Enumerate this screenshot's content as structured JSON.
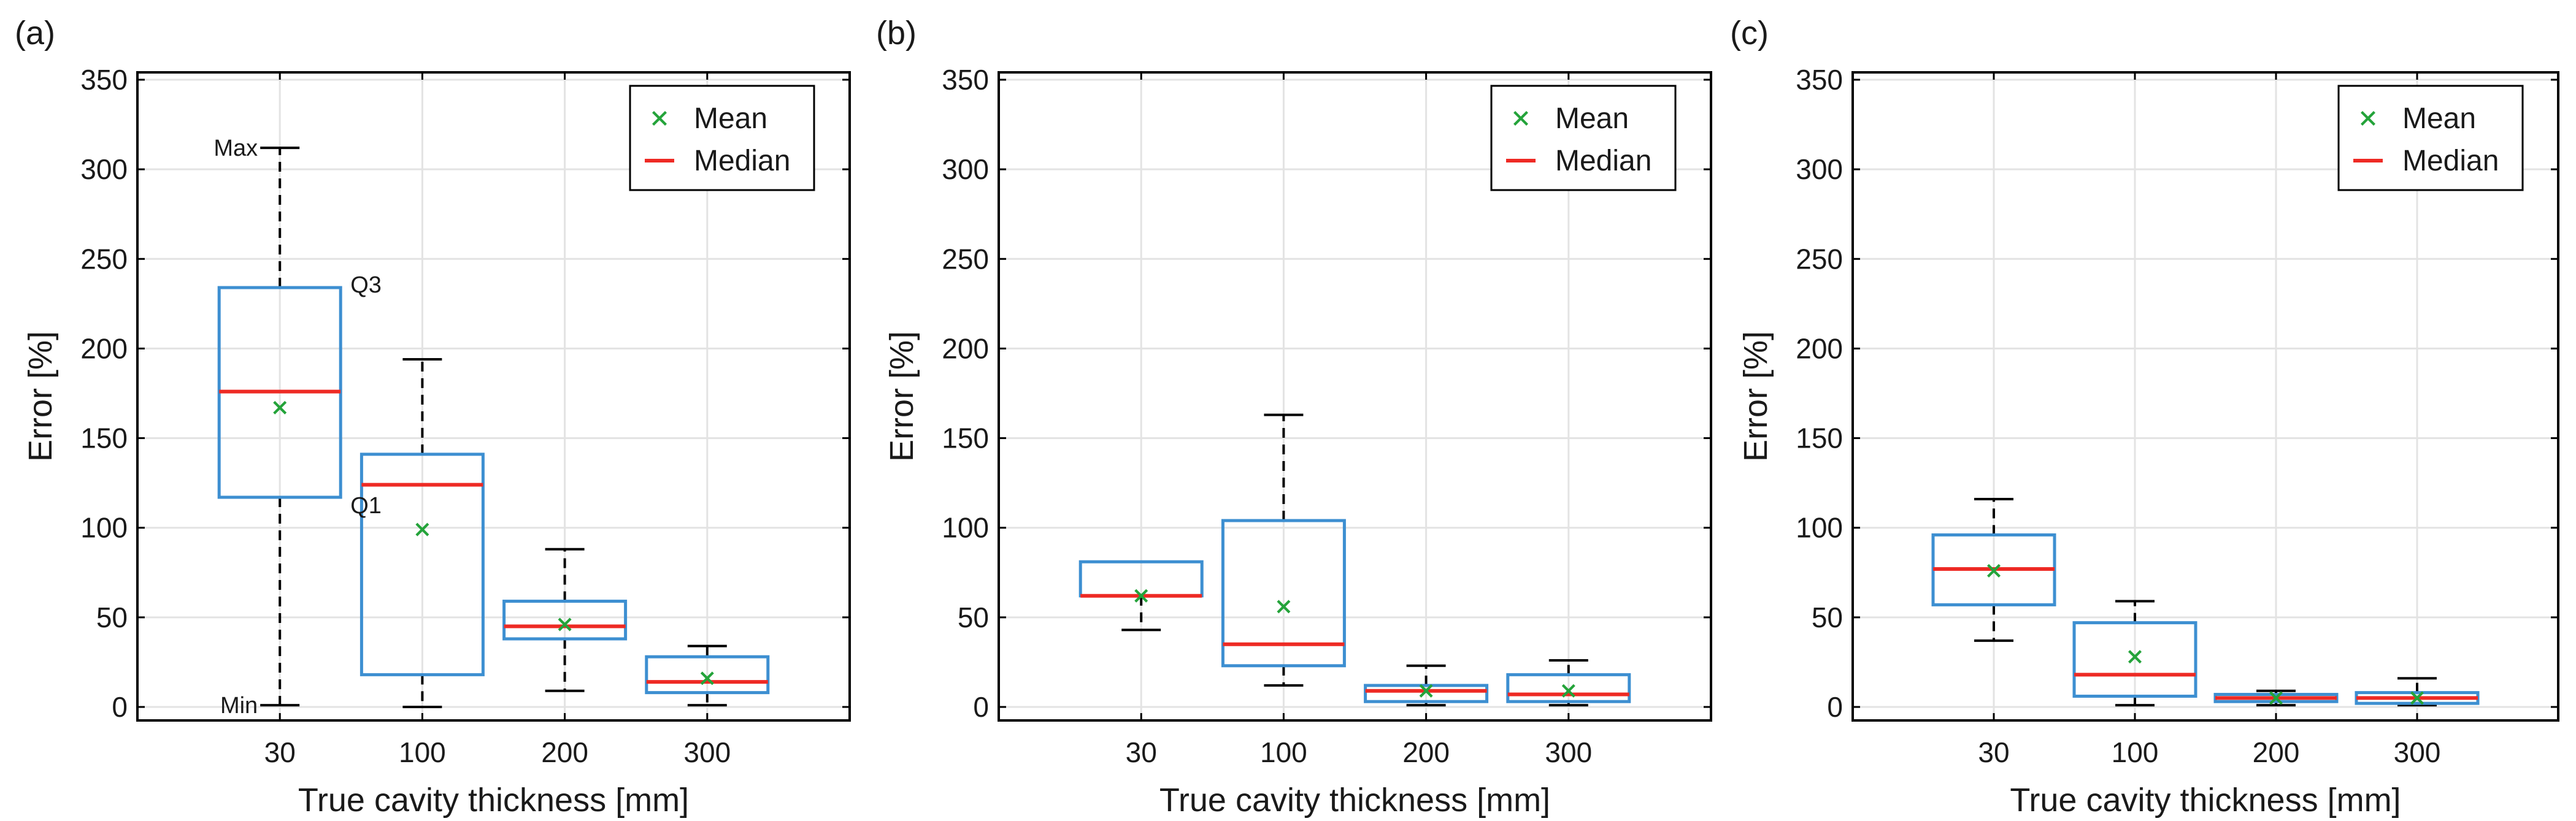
{
  "chart_data": [
    {
      "type": "box",
      "panel_label": "(a)",
      "xlabel": "True cavity thickness [mm]",
      "ylabel": "Error [%]",
      "categories": [
        "30",
        "100",
        "200",
        "300"
      ],
      "ylim": [
        0,
        350
      ],
      "yticks": [
        "0",
        "50",
        "100",
        "150",
        "200",
        "250",
        "300",
        "350"
      ],
      "grid": true,
      "legend": {
        "position": "top-right",
        "mean_label": "Mean",
        "median_label": "Median"
      },
      "annotations": {
        "max": "Max",
        "q3": "Q3",
        "q1": "Q1",
        "min": "Min"
      },
      "boxes": [
        {
          "min": 1,
          "q1": 117,
          "median": 176,
          "q3": 234,
          "max": 312,
          "mean": 167
        },
        {
          "min": 0,
          "q1": 18,
          "median": 124,
          "q3": 141,
          "max": 194,
          "mean": 99
        },
        {
          "min": 9,
          "q1": 38,
          "median": 45,
          "q3": 59,
          "max": 88,
          "mean": 46
        },
        {
          "min": 1,
          "q1": 8,
          "median": 14,
          "q3": 28,
          "max": 34,
          "mean": 16
        }
      ]
    },
    {
      "type": "box",
      "panel_label": "(b)",
      "xlabel": "True cavity thickness [mm]",
      "ylabel": "Error [%]",
      "categories": [
        "30",
        "100",
        "200",
        "300"
      ],
      "ylim": [
        0,
        350
      ],
      "yticks": [
        "0",
        "50",
        "100",
        "150",
        "200",
        "250",
        "300",
        "350"
      ],
      "grid": true,
      "legend": {
        "position": "top-right",
        "mean_label": "Mean",
        "median_label": "Median"
      },
      "boxes": [
        {
          "min": 43,
          "q1": 62,
          "median": 62,
          "q3": 81,
          "max": 81,
          "mean": 62
        },
        {
          "min": 12,
          "q1": 23,
          "median": 35,
          "q3": 104,
          "max": 163,
          "mean": 56
        },
        {
          "min": 1,
          "q1": 3,
          "median": 9,
          "q3": 12,
          "max": 23,
          "mean": 9
        },
        {
          "min": 1,
          "q1": 3,
          "median": 7,
          "q3": 18,
          "max": 26,
          "mean": 9
        }
      ]
    },
    {
      "type": "box",
      "panel_label": "(c)",
      "xlabel": "True cavity thickness [mm]",
      "ylabel": "Error [%]",
      "categories": [
        "30",
        "100",
        "200",
        "300"
      ],
      "ylim": [
        0,
        350
      ],
      "yticks": [
        "0",
        "50",
        "100",
        "150",
        "200",
        "250",
        "300",
        "350"
      ],
      "grid": true,
      "legend": {
        "position": "top-right",
        "mean_label": "Mean",
        "median_label": "Median"
      },
      "boxes": [
        {
          "min": 37,
          "q1": 57,
          "median": 77,
          "q3": 96,
          "max": 116,
          "mean": 76
        },
        {
          "min": 1,
          "q1": 6,
          "median": 18,
          "q3": 47,
          "max": 59,
          "mean": 28
        },
        {
          "min": 1,
          "q1": 3,
          "median": 5,
          "q3": 7,
          "max": 9,
          "mean": 5
        },
        {
          "min": 1,
          "q1": 2,
          "median": 5,
          "q3": 8,
          "max": 16,
          "mean": 5
        }
      ]
    }
  ],
  "colors": {
    "box": "#3d8fd1",
    "median": "#ee2a24",
    "mean": "#24a33a"
  }
}
